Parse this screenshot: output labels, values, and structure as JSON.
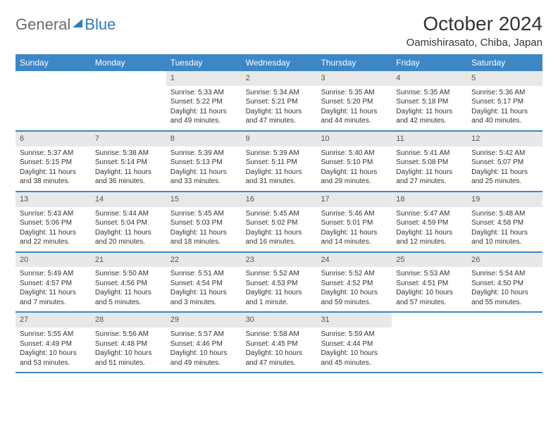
{
  "brand": {
    "general": "General",
    "blue": "Blue"
  },
  "title": "October 2024",
  "location": "Oamishirasato, Chiba, Japan",
  "colors": {
    "accent": "#3d87c7",
    "logo_blue": "#2f7bbf",
    "logo_gray": "#6b6b6b",
    "daynum_bg": "#e8e8e8",
    "text": "#333333",
    "white": "#ffffff"
  },
  "weekdays": [
    "Sunday",
    "Monday",
    "Tuesday",
    "Wednesday",
    "Thursday",
    "Friday",
    "Saturday"
  ],
  "weeks": [
    [
      {
        "empty": true
      },
      {
        "empty": true
      },
      {
        "day": "1",
        "sunrise": "Sunrise: 5:33 AM",
        "sunset": "Sunset: 5:22 PM",
        "daylight": "Daylight: 11 hours and 49 minutes."
      },
      {
        "day": "2",
        "sunrise": "Sunrise: 5:34 AM",
        "sunset": "Sunset: 5:21 PM",
        "daylight": "Daylight: 11 hours and 47 minutes."
      },
      {
        "day": "3",
        "sunrise": "Sunrise: 5:35 AM",
        "sunset": "Sunset: 5:20 PM",
        "daylight": "Daylight: 11 hours and 44 minutes."
      },
      {
        "day": "4",
        "sunrise": "Sunrise: 5:35 AM",
        "sunset": "Sunset: 5:18 PM",
        "daylight": "Daylight: 11 hours and 42 minutes."
      },
      {
        "day": "5",
        "sunrise": "Sunrise: 5:36 AM",
        "sunset": "Sunset: 5:17 PM",
        "daylight": "Daylight: 11 hours and 40 minutes."
      }
    ],
    [
      {
        "day": "6",
        "sunrise": "Sunrise: 5:37 AM",
        "sunset": "Sunset: 5:15 PM",
        "daylight": "Daylight: 11 hours and 38 minutes."
      },
      {
        "day": "7",
        "sunrise": "Sunrise: 5:38 AM",
        "sunset": "Sunset: 5:14 PM",
        "daylight": "Daylight: 11 hours and 36 minutes."
      },
      {
        "day": "8",
        "sunrise": "Sunrise: 5:39 AM",
        "sunset": "Sunset: 5:13 PM",
        "daylight": "Daylight: 11 hours and 33 minutes."
      },
      {
        "day": "9",
        "sunrise": "Sunrise: 5:39 AM",
        "sunset": "Sunset: 5:11 PM",
        "daylight": "Daylight: 11 hours and 31 minutes."
      },
      {
        "day": "10",
        "sunrise": "Sunrise: 5:40 AM",
        "sunset": "Sunset: 5:10 PM",
        "daylight": "Daylight: 11 hours and 29 minutes."
      },
      {
        "day": "11",
        "sunrise": "Sunrise: 5:41 AM",
        "sunset": "Sunset: 5:08 PM",
        "daylight": "Daylight: 11 hours and 27 minutes."
      },
      {
        "day": "12",
        "sunrise": "Sunrise: 5:42 AM",
        "sunset": "Sunset: 5:07 PM",
        "daylight": "Daylight: 11 hours and 25 minutes."
      }
    ],
    [
      {
        "day": "13",
        "sunrise": "Sunrise: 5:43 AM",
        "sunset": "Sunset: 5:06 PM",
        "daylight": "Daylight: 11 hours and 22 minutes."
      },
      {
        "day": "14",
        "sunrise": "Sunrise: 5:44 AM",
        "sunset": "Sunset: 5:04 PM",
        "daylight": "Daylight: 11 hours and 20 minutes."
      },
      {
        "day": "15",
        "sunrise": "Sunrise: 5:45 AM",
        "sunset": "Sunset: 5:03 PM",
        "daylight": "Daylight: 11 hours and 18 minutes."
      },
      {
        "day": "16",
        "sunrise": "Sunrise: 5:45 AM",
        "sunset": "Sunset: 5:02 PM",
        "daylight": "Daylight: 11 hours and 16 minutes."
      },
      {
        "day": "17",
        "sunrise": "Sunrise: 5:46 AM",
        "sunset": "Sunset: 5:01 PM",
        "daylight": "Daylight: 11 hours and 14 minutes."
      },
      {
        "day": "18",
        "sunrise": "Sunrise: 5:47 AM",
        "sunset": "Sunset: 4:59 PM",
        "daylight": "Daylight: 11 hours and 12 minutes."
      },
      {
        "day": "19",
        "sunrise": "Sunrise: 5:48 AM",
        "sunset": "Sunset: 4:58 PM",
        "daylight": "Daylight: 11 hours and 10 minutes."
      }
    ],
    [
      {
        "day": "20",
        "sunrise": "Sunrise: 5:49 AM",
        "sunset": "Sunset: 4:57 PM",
        "daylight": "Daylight: 11 hours and 7 minutes."
      },
      {
        "day": "21",
        "sunrise": "Sunrise: 5:50 AM",
        "sunset": "Sunset: 4:56 PM",
        "daylight": "Daylight: 11 hours and 5 minutes."
      },
      {
        "day": "22",
        "sunrise": "Sunrise: 5:51 AM",
        "sunset": "Sunset: 4:54 PM",
        "daylight": "Daylight: 11 hours and 3 minutes."
      },
      {
        "day": "23",
        "sunrise": "Sunrise: 5:52 AM",
        "sunset": "Sunset: 4:53 PM",
        "daylight": "Daylight: 11 hours and 1 minute."
      },
      {
        "day": "24",
        "sunrise": "Sunrise: 5:52 AM",
        "sunset": "Sunset: 4:52 PM",
        "daylight": "Daylight: 10 hours and 59 minutes."
      },
      {
        "day": "25",
        "sunrise": "Sunrise: 5:53 AM",
        "sunset": "Sunset: 4:51 PM",
        "daylight": "Daylight: 10 hours and 57 minutes."
      },
      {
        "day": "26",
        "sunrise": "Sunrise: 5:54 AM",
        "sunset": "Sunset: 4:50 PM",
        "daylight": "Daylight: 10 hours and 55 minutes."
      }
    ],
    [
      {
        "day": "27",
        "sunrise": "Sunrise: 5:55 AM",
        "sunset": "Sunset: 4:49 PM",
        "daylight": "Daylight: 10 hours and 53 minutes."
      },
      {
        "day": "28",
        "sunrise": "Sunrise: 5:56 AM",
        "sunset": "Sunset: 4:48 PM",
        "daylight": "Daylight: 10 hours and 51 minutes."
      },
      {
        "day": "29",
        "sunrise": "Sunrise: 5:57 AM",
        "sunset": "Sunset: 4:46 PM",
        "daylight": "Daylight: 10 hours and 49 minutes."
      },
      {
        "day": "30",
        "sunrise": "Sunrise: 5:58 AM",
        "sunset": "Sunset: 4:45 PM",
        "daylight": "Daylight: 10 hours and 47 minutes."
      },
      {
        "day": "31",
        "sunrise": "Sunrise: 5:59 AM",
        "sunset": "Sunset: 4:44 PM",
        "daylight": "Daylight: 10 hours and 45 minutes."
      },
      {
        "empty": true
      },
      {
        "empty": true
      }
    ]
  ]
}
